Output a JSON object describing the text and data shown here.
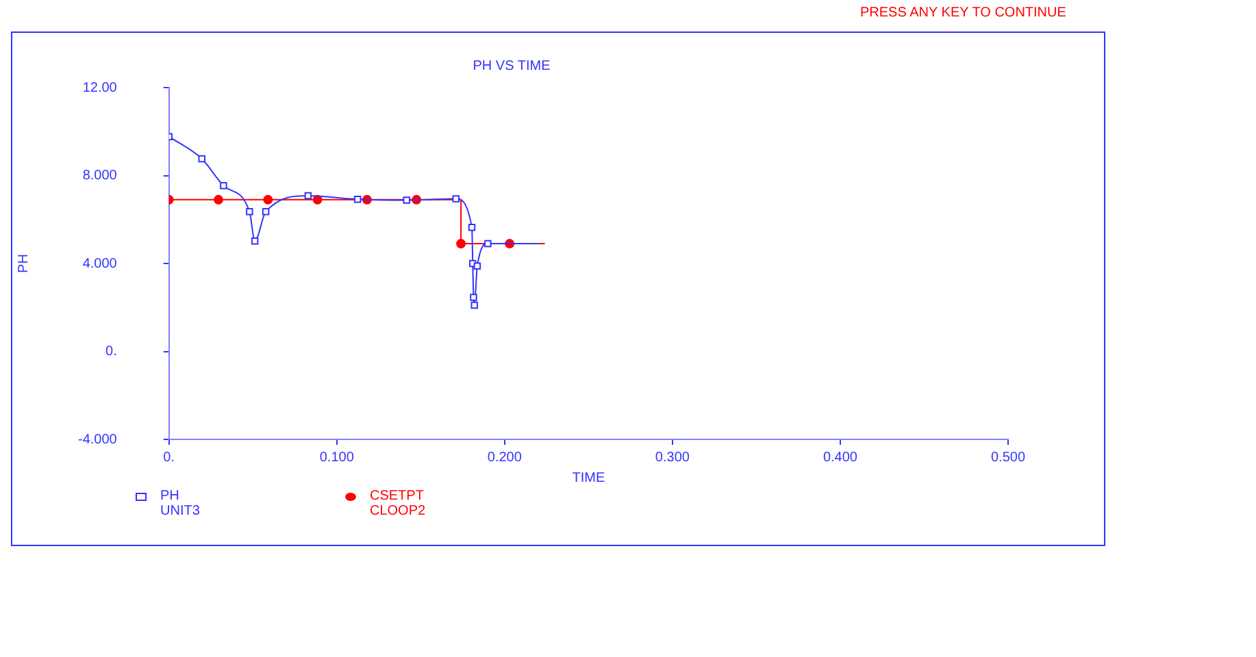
{
  "chart_data": {
    "type": "line",
    "title": "PH VS TIME",
    "xlabel": "TIME",
    "ylabel": "PH",
    "annotations": [
      "PRESS ANY KEY TO CONTINUE"
    ],
    "xlim": [
      0,
      0.5
    ],
    "xticks": [
      {
        "value": 0,
        "label": "0."
      },
      {
        "value": 0.1,
        "label": "0.100"
      },
      {
        "value": 0.2,
        "label": "0.200"
      },
      {
        "value": 0.3,
        "label": "0.300"
      },
      {
        "value": 0.4,
        "label": "0.400"
      },
      {
        "value": 0.5,
        "label": "0.500"
      }
    ],
    "ylim": [
      -4,
      12
    ],
    "yticks": [
      {
        "value": -4,
        "label": "-4.000"
      },
      {
        "value": 0,
        "label": "0."
      },
      {
        "value": 4,
        "label": "4.000"
      },
      {
        "value": 8,
        "label": "8.000"
      },
      {
        "value": 12,
        "label": "12.00"
      }
    ],
    "grid": false,
    "legend": "bottom left",
    "series": [
      {
        "name": "PH UNIT3",
        "color": "#3333ff",
        "marker": "square",
        "x": [
          0,
          0.0196,
          0.0325,
          0.048,
          0.0512,
          0.0577,
          0.0829,
          0.1124,
          0.1416,
          0.171,
          0.1805,
          0.181,
          0.1815,
          0.182,
          0.1837,
          0.19,
          0.2207
        ],
        "values": [
          9.77,
          8.76,
          7.54,
          6.36,
          5.02,
          6.36,
          7.08,
          6.92,
          6.88,
          6.94,
          5.64,
          4.0,
          2.46,
          2.1,
          3.88,
          4.9,
          4.9
        ]
      },
      {
        "name": "CSETPT CLOOP2",
        "type": "step",
        "color": "#ff0000",
        "marker": "circle",
        "x": [
          0,
          0.0295,
          0.059,
          0.0885,
          0.118,
          0.1475,
          0.174,
          0.203,
          0.224
        ],
        "values": [
          6.9,
          6.9,
          6.9,
          6.9,
          6.9,
          6.9,
          4.9,
          4.9,
          4.9
        ]
      }
    ]
  }
}
